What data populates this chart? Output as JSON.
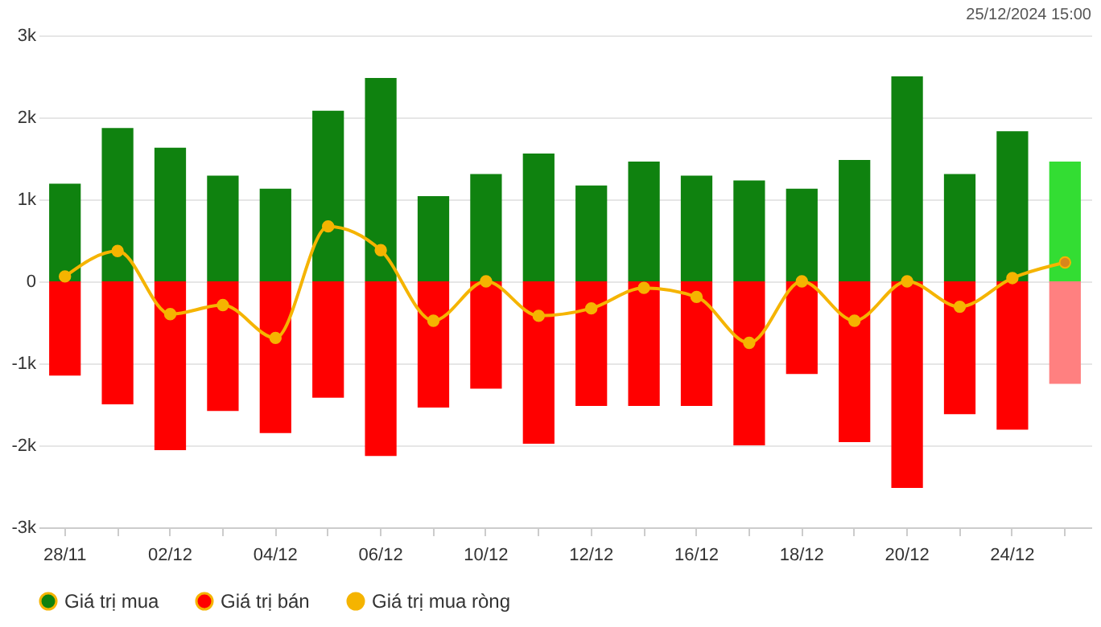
{
  "chart_data": {
    "type": "bar",
    "stacked": true,
    "categories": [
      "28/11",
      null,
      "02/12",
      null,
      "04/12",
      null,
      "06/12",
      null,
      "10/12",
      null,
      "12/12",
      null,
      "16/12",
      null,
      "18/12",
      null,
      "20/12",
      null,
      "24/12",
      null
    ],
    "series": [
      {
        "name": "Giá trị mua",
        "color": "#0f820f",
        "colors": [
          "#0f820f",
          "#0f820f",
          "#0f820f",
          "#0f820f",
          "#0f820f",
          "#0f820f",
          "#0f820f",
          "#0f820f",
          "#0f820f",
          "#0f820f",
          "#0f820f",
          "#0f820f",
          "#0f820f",
          "#0f820f",
          "#0f820f",
          "#0f820f",
          "#0f820f",
          "#0f820f",
          "#0f820f",
          "#33dd33"
        ],
        "values": [
          1190,
          1870,
          1630,
          1290,
          1130,
          2080,
          2480,
          1040,
          1310,
          1560,
          1170,
          1460,
          1290,
          1230,
          1130,
          1480,
          2500,
          1310,
          1830,
          1460
        ]
      },
      {
        "name": "Giá trị bán",
        "color": "#ff0000",
        "colors": [
          "#ff0000",
          "#ff0000",
          "#ff0000",
          "#ff0000",
          "#ff0000",
          "#ff0000",
          "#ff0000",
          "#ff0000",
          "#ff0000",
          "#ff0000",
          "#ff0000",
          "#ff0000",
          "#ff0000",
          "#ff0000",
          "#ff0000",
          "#ff0000",
          "#ff0000",
          "#ff0000",
          "#ff0000",
          "#ff8080"
        ],
        "values": [
          -1150,
          -1500,
          -2060,
          -1580,
          -1850,
          -1420,
          -2130,
          -1540,
          -1310,
          -1980,
          -1520,
          -1520,
          -1520,
          -2000,
          -1130,
          -1960,
          -2520,
          -1620,
          -1810,
          -1250
        ]
      },
      {
        "name": "Giá trị mua ròng",
        "type": "line",
        "marker": "circle",
        "color": "#f5b400",
        "colors": [
          "#f5b400",
          "#f5b400",
          "#f5b400",
          "#f5b400",
          "#f5b400",
          "#f5b400",
          "#f5b400",
          "#f5b400",
          "#f5b400",
          "#f5b400",
          "#f5b400",
          "#f5b400",
          "#f5b400",
          "#f5b400",
          "#f5b400",
          "#f5b400",
          "#f5b400",
          "#f5b400",
          "#f5b400",
          "#d9861c"
        ],
        "values": [
          60,
          370,
          -400,
          -290,
          -690,
          670,
          380,
          -480,
          0,
          -420,
          -330,
          -80,
          -190,
          -750,
          0,
          -480,
          0,
          -310,
          40,
          230
        ]
      }
    ],
    "ylim": [
      -3000,
      3000
    ],
    "yticks": [
      {
        "value": -3000,
        "label": "-3k"
      },
      {
        "value": -2000,
        "label": "-2k"
      },
      {
        "value": -1000,
        "label": "-1k"
      },
      {
        "value": 0,
        "label": "0"
      },
      {
        "value": 1000,
        "label": "1k"
      },
      {
        "value": 2000,
        "label": "2k"
      },
      {
        "value": 3000,
        "label": "3k"
      }
    ],
    "grid": "y",
    "legend": "bottom",
    "annotations": [
      "25/12/2024 15:00"
    ]
  }
}
